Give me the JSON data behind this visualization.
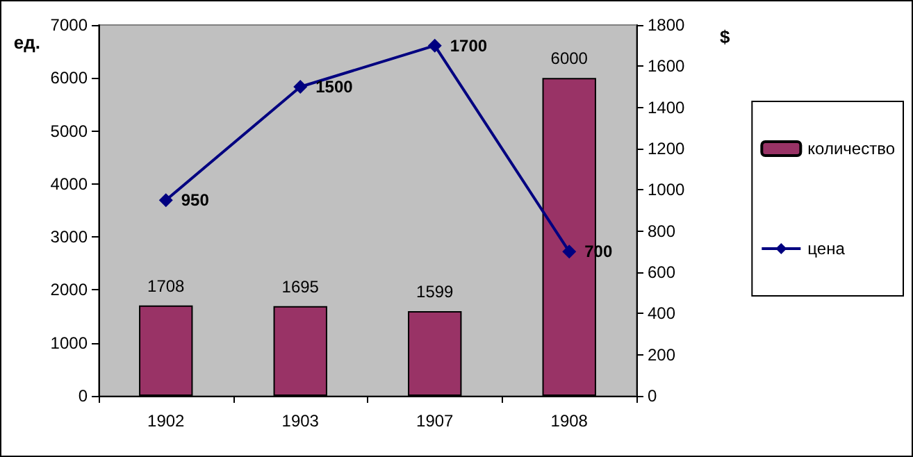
{
  "chart_data": {
    "type": "bar",
    "ylabel": "ед.",
    "y2label": "$",
    "categories": [
      "1902",
      "1903",
      "1907",
      "1908"
    ],
    "series": [
      {
        "name": "количество",
        "color": "#993366",
        "values": [
          1708,
          1695,
          1599,
          6000
        ]
      },
      {
        "name": "цена",
        "type": "line",
        "axis": "y2",
        "color": "#000080",
        "marker": "diamond",
        "values": [
          950,
          1500,
          1700,
          700
        ]
      }
    ],
    "ylim": [
      0,
      7000
    ],
    "yticks": [
      0,
      1000,
      2000,
      3000,
      4000,
      5000,
      6000,
      7000
    ],
    "y2lim": [
      0,
      1800
    ],
    "y2ticks": [
      0,
      200,
      400,
      600,
      800,
      1000,
      1200,
      1400,
      1600,
      1800
    ],
    "data_labels": true,
    "legend": "right",
    "grid": false
  }
}
